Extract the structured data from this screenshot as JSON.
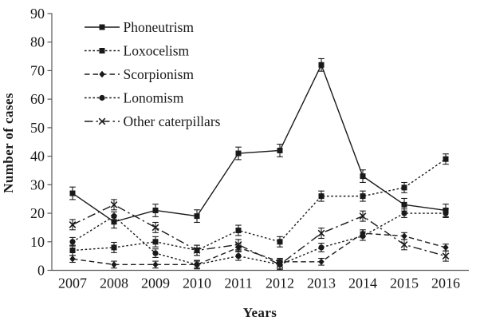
{
  "figure": {
    "background": "#ffffff",
    "ink_color": "#1a1a1a",
    "axis_color": "#595959"
  },
  "chart_data": {
    "type": "line",
    "title": "",
    "xlabel": "Years",
    "ylabel": "Number of cases",
    "x": [
      "2007",
      "2008",
      "2009",
      "2010",
      "2011",
      "2012",
      "2013",
      "2014",
      "2015",
      "2016"
    ],
    "ylim": [
      0,
      90
    ],
    "yticks": [
      0,
      10,
      20,
      30,
      40,
      50,
      60,
      70,
      80,
      90
    ],
    "grid": false,
    "error_bars": true,
    "legend_position": "top-left-inside",
    "series": [
      {
        "name": "Phoneutrism",
        "marker": "square",
        "line_style": "solid",
        "values": [
          27,
          17,
          21,
          19,
          41,
          42,
          72,
          33,
          23,
          21
        ],
        "error": 2.2
      },
      {
        "name": "Loxocelism",
        "marker": "square",
        "line_style": "dotted",
        "values": [
          7,
          8,
          10,
          7,
          14,
          10,
          26,
          26,
          29,
          39
        ],
        "error": 1.8
      },
      {
        "name": "Scorpionism",
        "marker": "diamond",
        "line_style": "dashed",
        "values": [
          4,
          2,
          2,
          2,
          8,
          3,
          3,
          13,
          12,
          8
        ],
        "error": 1.2
      },
      {
        "name": "Lonomism",
        "marker": "circle",
        "line_style": "dotted",
        "values": [
          10,
          19,
          6,
          2,
          5,
          2,
          8,
          12,
          20,
          20
        ],
        "error": 1.5
      },
      {
        "name": "Other caterpillars",
        "marker": "x",
        "line_style": "dashdot",
        "values": [
          16,
          23,
          15,
          7,
          9,
          2,
          13,
          19,
          9,
          5
        ],
        "error": 1.8
      }
    ]
  }
}
